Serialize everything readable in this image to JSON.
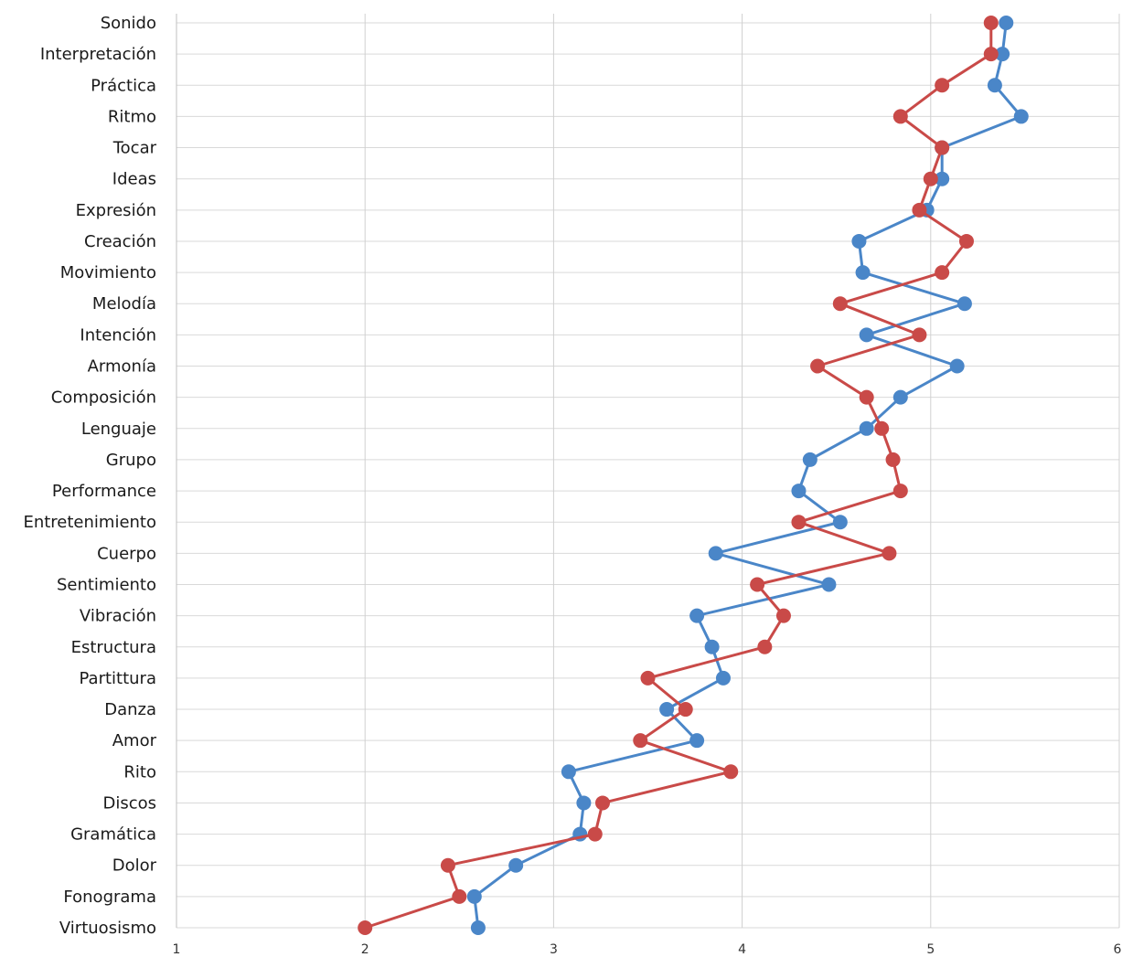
{
  "chart_data": {
    "type": "line",
    "orientation": "horizontal",
    "categories": [
      "Sonido",
      "Interpretación",
      "Práctica",
      "Ritmo",
      "Tocar",
      "Ideas",
      "Expresión",
      "Creación",
      "Movimiento",
      "Melodía",
      "Intención",
      "Armonía",
      "Composición",
      "Lenguaje",
      "Grupo",
      "Performance",
      "Entretenimiento",
      "Cuerpo",
      "Sentimiento",
      "Vibración",
      "Estructura",
      "Partittura",
      "Danza",
      "Amor",
      "Rito",
      "Discos",
      "Gramática",
      "Dolor",
      "Fonograma",
      "Virtuosismo"
    ],
    "xlim": [
      1,
      6
    ],
    "xticks": [
      "1",
      "2",
      "3",
      "4",
      "5",
      "6"
    ],
    "grid": true,
    "series": [
      {
        "color": "#4a86c8",
        "values": [
          5.4,
          5.38,
          5.34,
          5.48,
          5.06,
          5.06,
          4.98,
          4.62,
          4.64,
          5.18,
          4.66,
          5.14,
          4.84,
          4.66,
          4.36,
          4.3,
          4.52,
          3.86,
          4.46,
          3.76,
          3.84,
          3.9,
          3.6,
          3.76,
          3.08,
          3.16,
          3.14,
          2.8,
          2.58,
          2.6
        ]
      },
      {
        "color": "#c94a48",
        "values": [
          5.32,
          5.32,
          5.06,
          4.84,
          5.06,
          5.0,
          4.94,
          5.19,
          5.06,
          4.52,
          4.94,
          4.4,
          4.66,
          4.74,
          4.8,
          4.84,
          4.3,
          4.78,
          4.08,
          4.22,
          4.12,
          3.5,
          3.7,
          3.46,
          3.94,
          3.26,
          3.22,
          2.44,
          2.5,
          2.0
        ]
      }
    ]
  }
}
